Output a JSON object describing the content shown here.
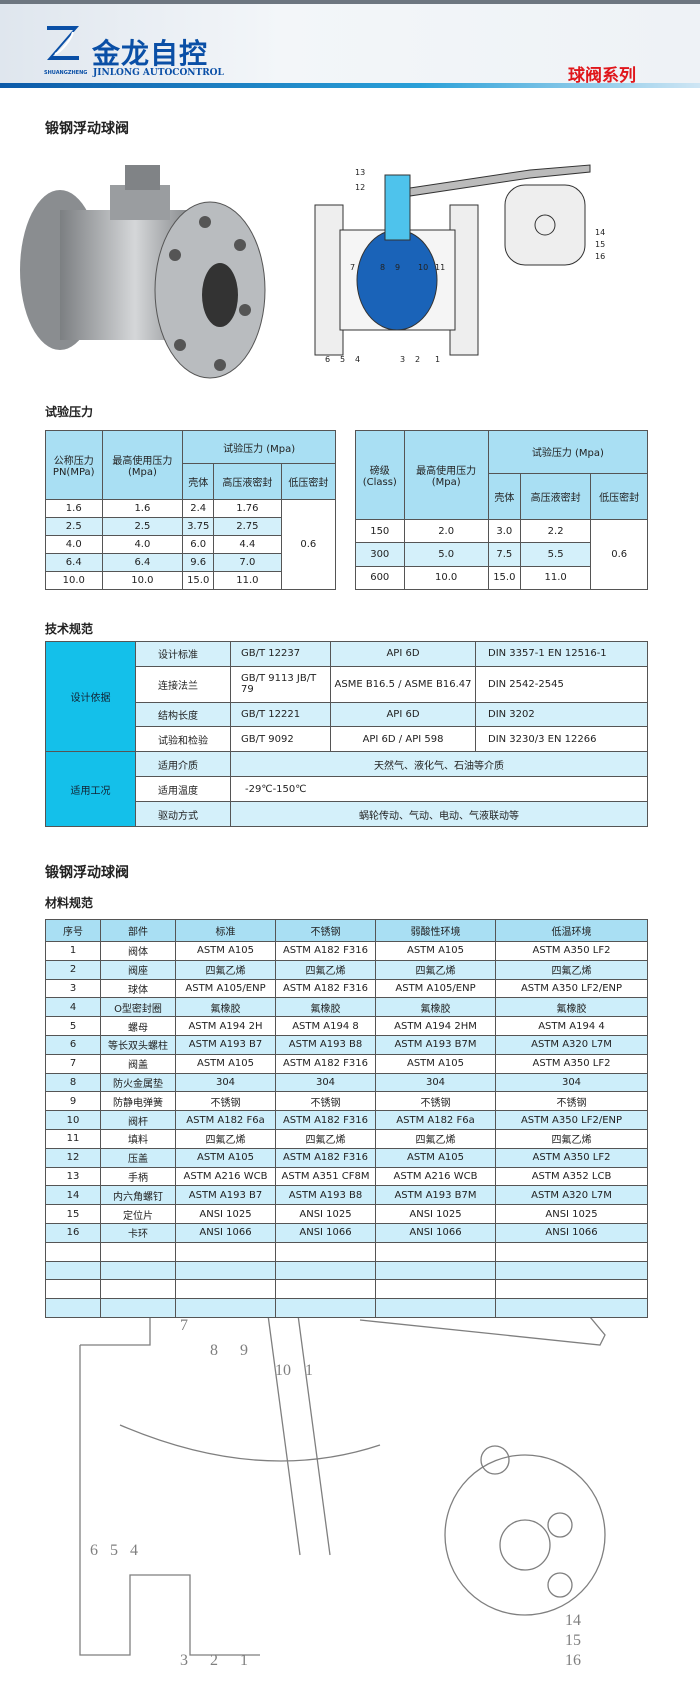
{
  "header": {
    "brand_cn": "金龙自控",
    "brand_en": "JINLONG AUTOCONTROL",
    "brand_sub": "SHUANGZHENG",
    "series": "球阀系列",
    "colors": {
      "brand": "#0a4fa6",
      "series": "#e0161b"
    }
  },
  "section1": {
    "title": "锻钢浮动球阀",
    "diagram_labels": [
      "13",
      "12",
      "7",
      "8",
      "9",
      "10",
      "11",
      "6",
      "5",
      "4",
      "3",
      "2",
      "1",
      "14",
      "15",
      "16"
    ]
  },
  "pressure": {
    "title": "试验压力",
    "left": {
      "h1": "公称压力\nPN(MPa)",
      "h2": "最高使用压力\n(Mpa)",
      "h3": "试验压力 (Mpa)",
      "sub": [
        "壳体",
        "高压液密封",
        "低压密封"
      ],
      "rows": [
        [
          "1.6",
          "1.6",
          "2.4",
          "1.76"
        ],
        [
          "2.5",
          "2.5",
          "3.75",
          "2.75"
        ],
        [
          "4.0",
          "4.0",
          "6.0",
          "4.4"
        ],
        [
          "6.4",
          "6.4",
          "9.6",
          "7.0"
        ],
        [
          "10.0",
          "10.0",
          "15.0",
          "11.0"
        ]
      ],
      "low": "0.6"
    },
    "right": {
      "h1": "磅级\n(Class)",
      "h2": "最高使用压力\n(Mpa)",
      "h3": "试验压力 (Mpa)",
      "sub": [
        "壳体",
        "高压液密封",
        "低压密封"
      ],
      "rows": [
        [
          "150",
          "2.0",
          "3.0",
          "2.2"
        ],
        [
          "300",
          "5.0",
          "7.5",
          "5.5"
        ],
        [
          "600",
          "10.0",
          "15.0",
          "11.0"
        ]
      ],
      "low": "0.6"
    }
  },
  "spec": {
    "title": "技术规范",
    "group1": "设计依据",
    "group2": "适用工况",
    "rows1": [
      [
        "设计标准",
        "GB/T 12237",
        "API 6D",
        "DIN 3357-1  EN 12516-1"
      ],
      [
        "连接法兰",
        "GB/T 9113  JB/T 79",
        "ASME B16.5 / ASME B16.47",
        "DIN 2542-2545"
      ],
      [
        "结构长度",
        "GB/T 12221",
        "API 6D",
        "DIN 3202"
      ],
      [
        "试验和检验",
        "GB/T 9092",
        "API 6D / API 598",
        "DIN 3230/3  EN 12266"
      ]
    ],
    "rows2": [
      [
        "适用介质",
        "天然气、液化气、石油等介质"
      ],
      [
        "适用温度",
        "-29℃-150℃"
      ],
      [
        "驱动方式",
        "蜗轮传动、气动、电动、气液联动等"
      ]
    ]
  },
  "section2": {
    "title": "锻钢浮动球阀",
    "subtitle": "材料规范"
  },
  "materials": {
    "headers": [
      "序号",
      "部件",
      "标准",
      "不锈钢",
      "弱酸性环境",
      "低温环境"
    ],
    "rows": [
      [
        "1",
        "阀体",
        "ASTM A105",
        "ASTM A182 F316",
        "ASTM A105",
        "ASTM A350 LF2"
      ],
      [
        "2",
        "阀座",
        "四氟乙烯",
        "四氟乙烯",
        "四氟乙烯",
        "四氟乙烯"
      ],
      [
        "3",
        "球体",
        "ASTM A105/ENP",
        "ASTM A182 F316",
        "ASTM A105/ENP",
        "ASTM A350 LF2/ENP"
      ],
      [
        "4",
        "O型密封圈",
        "氟橡胶",
        "氟橡胶",
        "氟橡胶",
        "氟橡胶"
      ],
      [
        "5",
        "螺母",
        "ASTM A194 2H",
        "ASTM A194 8",
        "ASTM A194 2HM",
        "ASTM A194 4"
      ],
      [
        "6",
        "等长双头螺柱",
        "ASTM A193 B7",
        "ASTM A193 B8",
        "ASTM A193 B7M",
        "ASTM A320 L7M"
      ],
      [
        "7",
        "阀盖",
        "ASTM A105",
        "ASTM A182 F316",
        "ASTM A105",
        "ASTM A350 LF2"
      ],
      [
        "8",
        "防火金属垫",
        "304",
        "304",
        "304",
        "304"
      ],
      [
        "9",
        "防静电弹簧",
        "不锈钢",
        "不锈钢",
        "不锈钢",
        "不锈钢"
      ],
      [
        "10",
        "阀杆",
        "ASTM A182 F6a",
        "ASTM A182 F316",
        "ASTM A182 F6a",
        "ASTM A350 LF2/ENP"
      ],
      [
        "11",
        "填料",
        "四氟乙烯",
        "四氟乙烯",
        "四氟乙烯",
        "四氟乙烯"
      ],
      [
        "12",
        "压盖",
        "ASTM A105",
        "ASTM A182 F316",
        "ASTM A105",
        "ASTM A350 LF2"
      ],
      [
        "13",
        "手柄",
        "ASTM A216 WCB",
        "ASTM A351 CF8M",
        "ASTM A216 WCB",
        "ASTM A352 LCB"
      ],
      [
        "14",
        "内六角螺钉",
        "ASTM A193 B7",
        "ASTM A193 B8",
        "ASTM A193 B7M",
        "ASTM A320 L7M"
      ],
      [
        "15",
        "定位片",
        "ANSI 1025",
        "ANSI 1025",
        "ANSI 1025",
        "ANSI 1025"
      ],
      [
        "16",
        "卡环",
        "ANSI 1066",
        "ANSI 1066",
        "ANSI 1066",
        "ANSI 1066"
      ],
      [
        "",
        "",
        "",
        "",
        "",
        ""
      ],
      [
        "",
        "",
        "",
        "",
        "",
        ""
      ],
      [
        "",
        "",
        "",
        "",
        "",
        ""
      ],
      [
        "",
        "",
        "",
        "",
        "",
        ""
      ]
    ]
  },
  "bottom_diagram_labels": [
    "7",
    "8",
    "9",
    "10",
    "1",
    "6",
    "5",
    "4",
    "3",
    "2",
    "1",
    "14",
    "15",
    "16"
  ]
}
